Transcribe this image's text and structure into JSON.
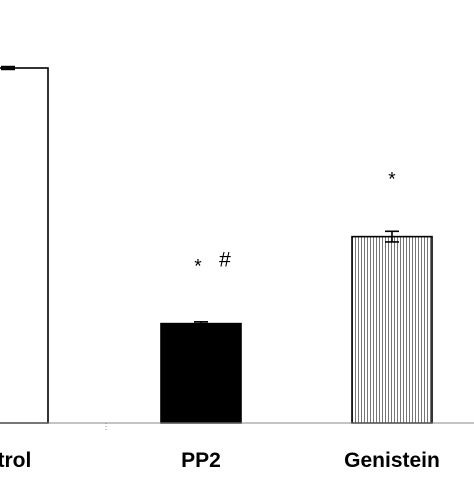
{
  "chart_data": {
    "type": "bar",
    "categories": [
      "ntrol",
      "PP2",
      "Genistein"
    ],
    "values": [
      100,
      28,
      52.5
    ],
    "errors": [
      0.4,
      0.5,
      1.5
    ],
    "annotations": [
      "",
      "* #",
      "*"
    ],
    "annotation_parts": [
      [],
      [
        "*",
        "#"
      ],
      [
        "*"
      ]
    ],
    "fills": [
      "white",
      "black",
      "vertical-lines"
    ],
    "ylim": [
      0,
      100
    ],
    "title": "",
    "xlabel": "",
    "ylabel": "",
    "grid": false
  },
  "colors": {
    "bar_stroke": "#000000",
    "bar_black": "#000000",
    "bar_white": "#ffffff",
    "hatch_line": "#555555"
  }
}
